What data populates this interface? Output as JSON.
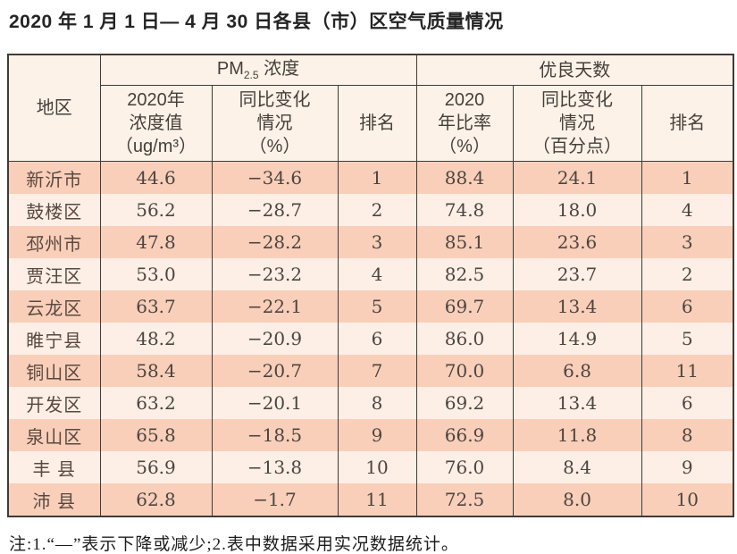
{
  "title": "2020 年 1 月 1 日— 4 月 30 日各县（市）区空气质量情况",
  "table": {
    "header": {
      "region": "地区",
      "pm_group": {
        "prefix": "PM",
        "sub": "2.5",
        "suffix": " 浓度"
      },
      "good_group": "优良天数",
      "pm_value": "2020年\n浓度值\n（ug/m³）",
      "pm_change": "同比变化\n情况\n（%）",
      "pm_rank": "排名",
      "good_rate": "2020\n年比率\n（%）",
      "good_change": "同比变化\n情况\n（百分点）",
      "good_rank": "排名"
    }
  },
  "chart_data": {
    "type": "table",
    "title": "2020年1月1日—4月30日各县（市）区空气质量情况",
    "columns": [
      "地区",
      "PM2.5浓度 2020年浓度值（ug/m³）",
      "PM2.5浓度 同比变化情况（%）",
      "PM2.5浓度 排名",
      "优良天数 2020年比率（%）",
      "优良天数 同比变化情况（百分点）",
      "优良天数 排名"
    ],
    "rows": [
      {
        "region": "新沂市",
        "pm_value": "44.6",
        "pm_change": "−34.6",
        "pm_rank": "1",
        "good_rate": "88.4",
        "good_change": "24.1",
        "good_rank": "1"
      },
      {
        "region": "鼓楼区",
        "pm_value": "56.2",
        "pm_change": "−28.7",
        "pm_rank": "2",
        "good_rate": "74.8",
        "good_change": "18.0",
        "good_rank": "4"
      },
      {
        "region": "邳州市",
        "pm_value": "47.8",
        "pm_change": "−28.2",
        "pm_rank": "3",
        "good_rate": "85.1",
        "good_change": "23.6",
        "good_rank": "3"
      },
      {
        "region": "贾汪区",
        "pm_value": "53.0",
        "pm_change": "−23.2",
        "pm_rank": "4",
        "good_rate": "82.5",
        "good_change": "23.7",
        "good_rank": "2"
      },
      {
        "region": "云龙区",
        "pm_value": "63.7",
        "pm_change": "−22.1",
        "pm_rank": "5",
        "good_rate": "69.7",
        "good_change": "13.4",
        "good_rank": "6"
      },
      {
        "region": "睢宁县",
        "pm_value": "48.2",
        "pm_change": "−20.9",
        "pm_rank": "6",
        "good_rate": "86.0",
        "good_change": "14.9",
        "good_rank": "5"
      },
      {
        "region": "铜山区",
        "pm_value": "58.4",
        "pm_change": "−20.7",
        "pm_rank": "7",
        "good_rate": "70.0",
        "good_change": "6.8",
        "good_rank": "11"
      },
      {
        "region": "开发区",
        "pm_value": "63.2",
        "pm_change": "−20.1",
        "pm_rank": "8",
        "good_rate": "69.2",
        "good_change": "13.4",
        "good_rank": "6"
      },
      {
        "region": "泉山区",
        "pm_value": "65.8",
        "pm_change": "−18.5",
        "pm_rank": "9",
        "good_rate": "66.9",
        "good_change": "11.8",
        "good_rank": "8"
      },
      {
        "region": "丰 县",
        "pm_value": "56.9",
        "pm_change": "−13.8",
        "pm_rank": "10",
        "good_rate": "76.0",
        "good_change": "8.4",
        "good_rank": "9"
      },
      {
        "region": "沛 县",
        "pm_value": "62.8",
        "pm_change": "−1.7",
        "pm_rank": "11",
        "good_rate": "72.5",
        "good_change": "8.0",
        "good_rank": "10"
      }
    ]
  },
  "footnote": "注:1.“—”表示下降或减少;2.表中数据采用实况数据统计。",
  "colors": {
    "row_dark": "#f9cfba",
    "row_light": "#fdefe5",
    "header_bg": "#fcf2e8",
    "border": "#3f3b38",
    "title_text": "#242424",
    "cell_text": "#4c4540"
  }
}
